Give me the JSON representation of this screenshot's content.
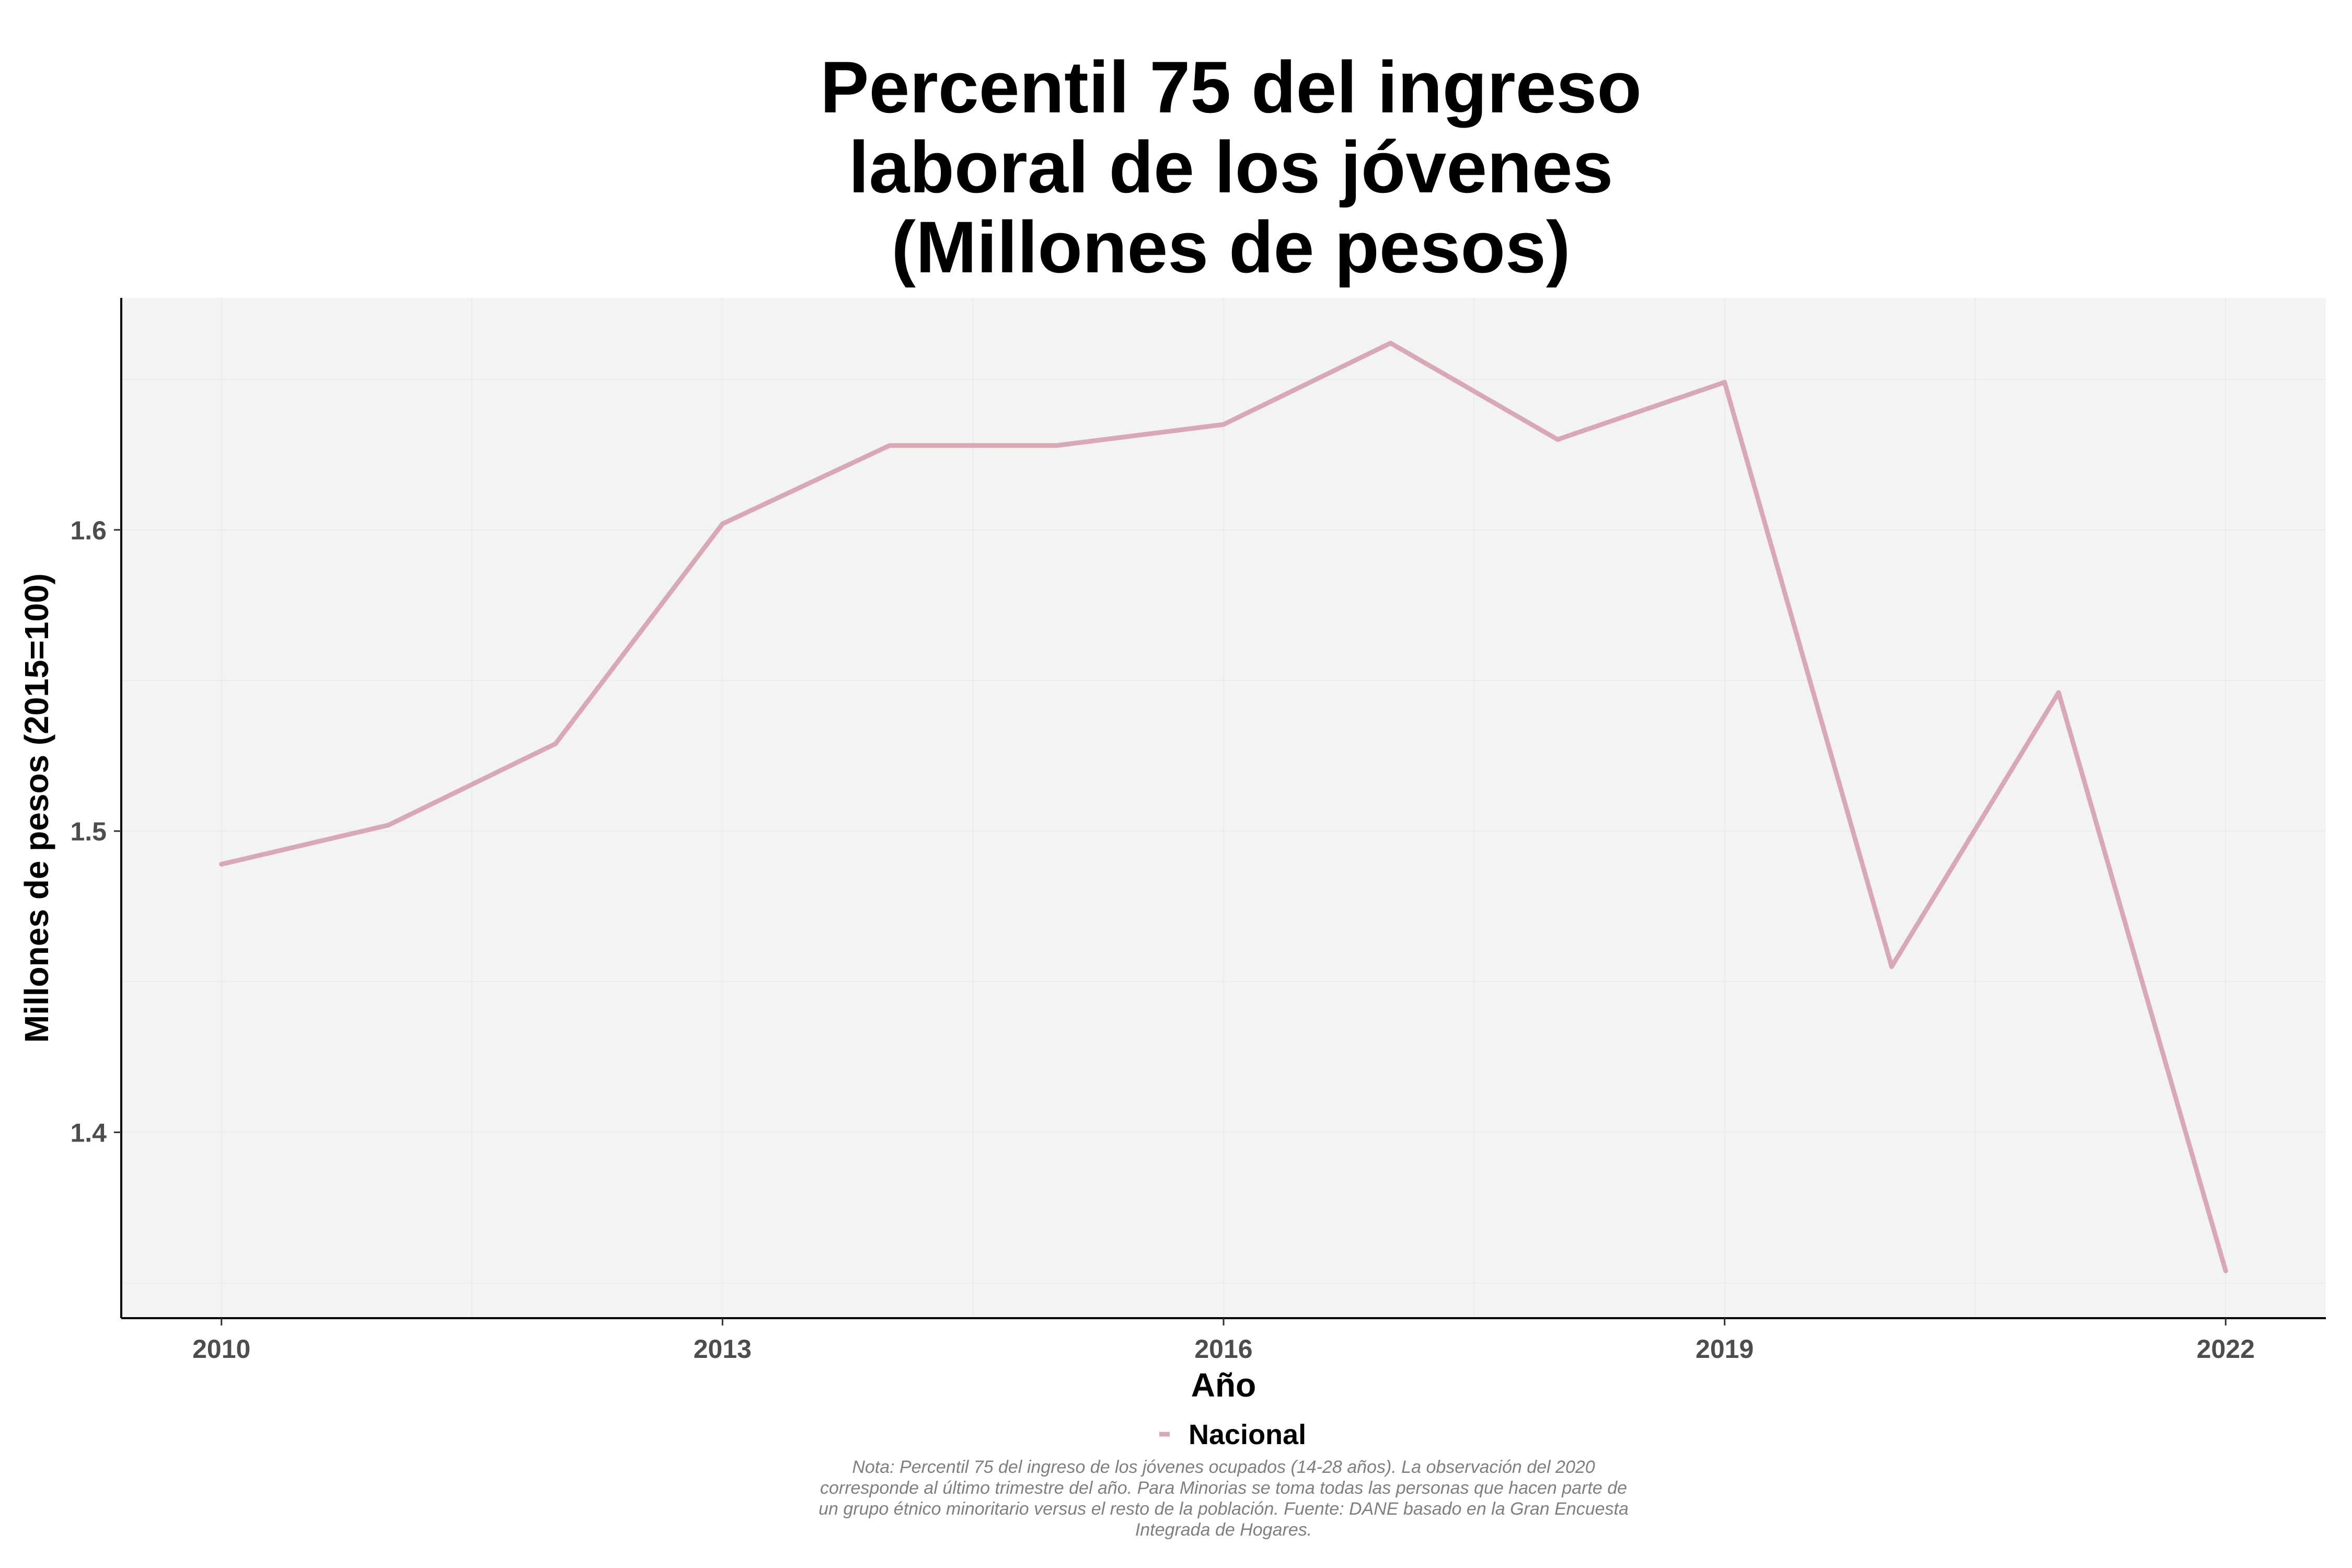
{
  "chart_data": {
    "type": "line",
    "title_lines": [
      "Percentil 75 del ingreso",
      "laboral de los jóvenes",
      "(Millones de pesos)"
    ],
    "xlabel": "Año",
    "ylabel": "Millones de pesos (2015=100)",
    "x": [
      2010,
      2011,
      2012,
      2013,
      2014,
      2015,
      2016,
      2017,
      2018,
      2019,
      2020,
      2021,
      2022
    ],
    "series": [
      {
        "name": "Nacional",
        "color": "#d8a8b5",
        "values": [
          1.489,
          1.502,
          1.529,
          1.602,
          1.628,
          1.628,
          1.635,
          1.662,
          1.63,
          1.649,
          1.455,
          1.546,
          1.354
        ]
      }
    ],
    "xlim": [
      2009.4,
      2022.6
    ],
    "ylim": [
      1.3383,
      1.677
    ],
    "x_ticks": [
      2010,
      2013,
      2016,
      2019,
      2022
    ],
    "y_ticks": [
      1.4,
      1.5,
      1.6
    ],
    "y_tick_labels": [
      "1.4",
      "1.5",
      "1.6"
    ],
    "legend_position": "bottom",
    "plot_background": "#f3f3f3",
    "note_lines": [
      "Nota: Percentil 75 del ingreso de los jóvenes ocupados (14-28 años). La observación del 2020",
      "corresponde al último trimestre del año. Para Minorias se toma todas las personas que hacen parte de",
      "un grupo étnico minoritario versus el resto de la población. Fuente: DANE basado en la Gran Encuesta",
      "Integrada de Hogares."
    ]
  }
}
